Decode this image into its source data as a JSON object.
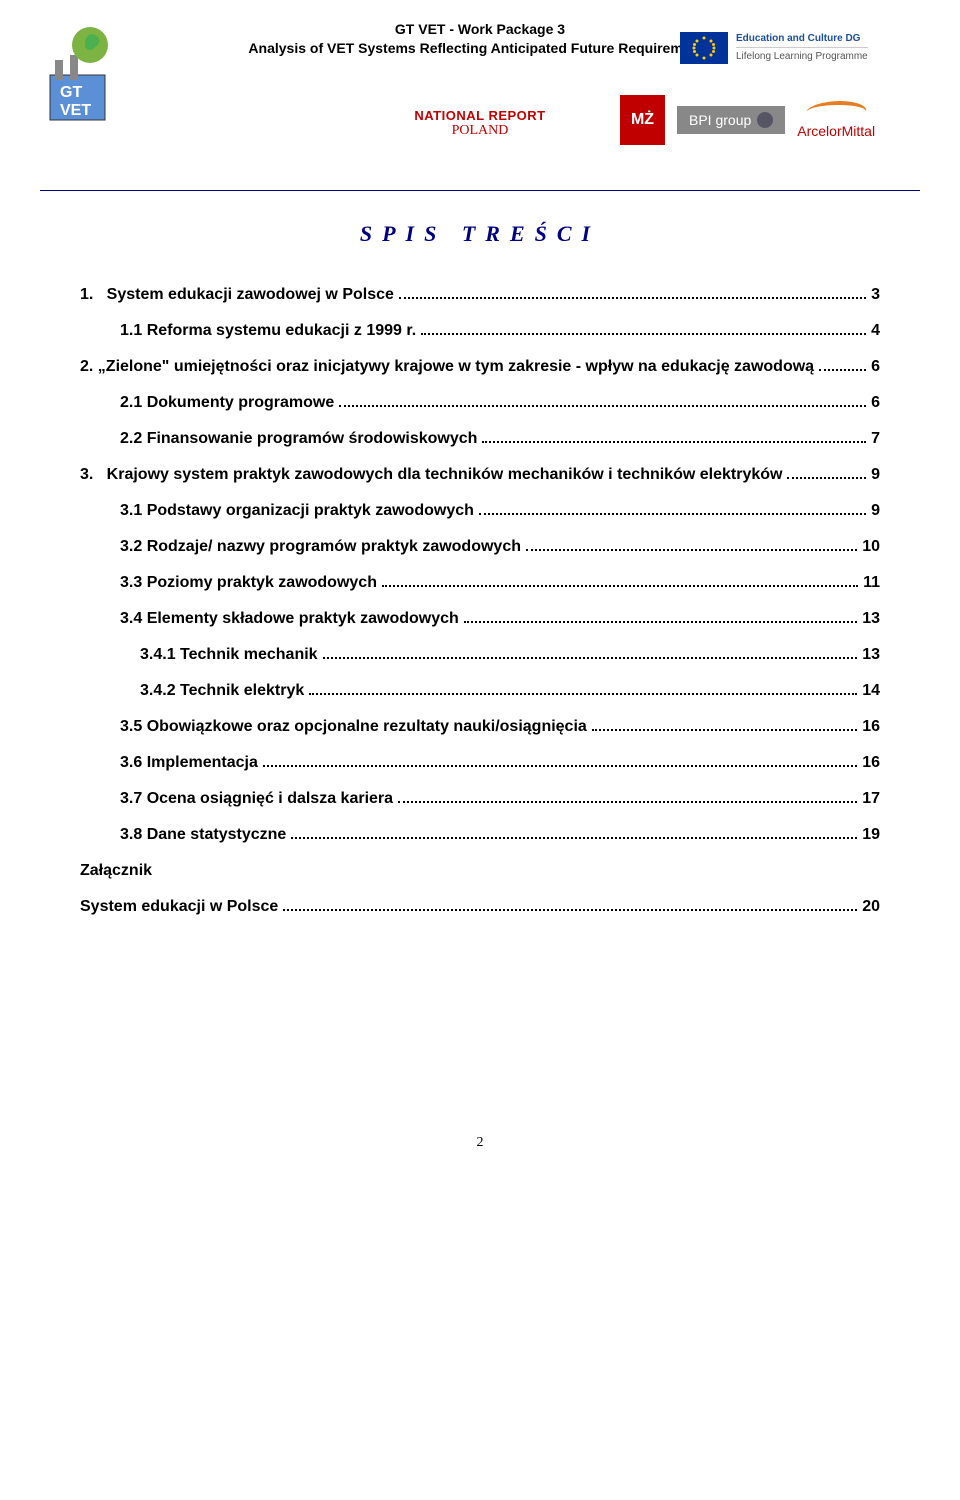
{
  "header": {
    "line1": "GT VET - Work Package 3",
    "line2": "Analysis of VET Systems Reflecting Anticipated Future Requirements",
    "national_report": "NATIONAL REPORT",
    "country": "POLAND",
    "edu_culture": "Education and Culture DG",
    "lifelong": "Lifelong Learning Programme",
    "bpi": "BPI group",
    "arcelor": "ArcelorMittal",
    "mz": "MŻ"
  },
  "toc_title": "SPIS TREŚCI",
  "toc": [
    {
      "label": "1.   System edukacji zawodowej w Polsce",
      "page": "3",
      "indent": 0
    },
    {
      "label": "1.1 Reforma systemu edukacji z 1999 r.",
      "page": "4",
      "indent": 1
    },
    {
      "label": "2. „Zielone\" umiejętności oraz inicjatywy krajowe w tym zakresie - wpływ na edukację zawodową",
      "page": "6",
      "indent": 0
    },
    {
      "label": "2.1 Dokumenty programowe",
      "page": "6",
      "indent": 1
    },
    {
      "label": "2.2 Finansowanie programów środowiskowych",
      "page": "7",
      "indent": 1
    },
    {
      "label": "3.   Krajowy system praktyk zawodowych dla techników mechaników i techników elektryków",
      "page": "9",
      "indent": 0
    },
    {
      "label": "3.1 Podstawy organizacji praktyk zawodowych",
      "page": "9",
      "indent": 1
    },
    {
      "label": "3.2 Rodzaje/ nazwy programów praktyk zawodowych",
      "page": "10",
      "indent": 1
    },
    {
      "label": "3.3 Poziomy praktyk zawodowych",
      "page": "11",
      "indent": 1
    },
    {
      "label": "3.4 Elementy składowe praktyk zawodowych",
      "page": "13",
      "indent": 1
    },
    {
      "label": "3.4.1 Technik mechanik",
      "page": "13",
      "indent": 2
    },
    {
      "label": "3.4.2 Technik elektryk",
      "page": "14",
      "indent": 2
    },
    {
      "label": "3.5 Obowiązkowe oraz opcjonalne rezultaty nauki/osiągnięcia",
      "page": "16",
      "indent": 1
    },
    {
      "label": "3.6 Implementacja",
      "page": "16",
      "indent": 1
    },
    {
      "label": "3.7 Ocena osiągnięć i dalsza kariera",
      "page": "17",
      "indent": 1
    },
    {
      "label": "3.8 Dane statystyczne",
      "page": "19",
      "indent": 1
    },
    {
      "label": "Załącznik",
      "page": "",
      "indent": 0
    },
    {
      "label": "System edukacji w Polsce",
      "page": "20",
      "indent": 0
    }
  ],
  "page_number": "2"
}
